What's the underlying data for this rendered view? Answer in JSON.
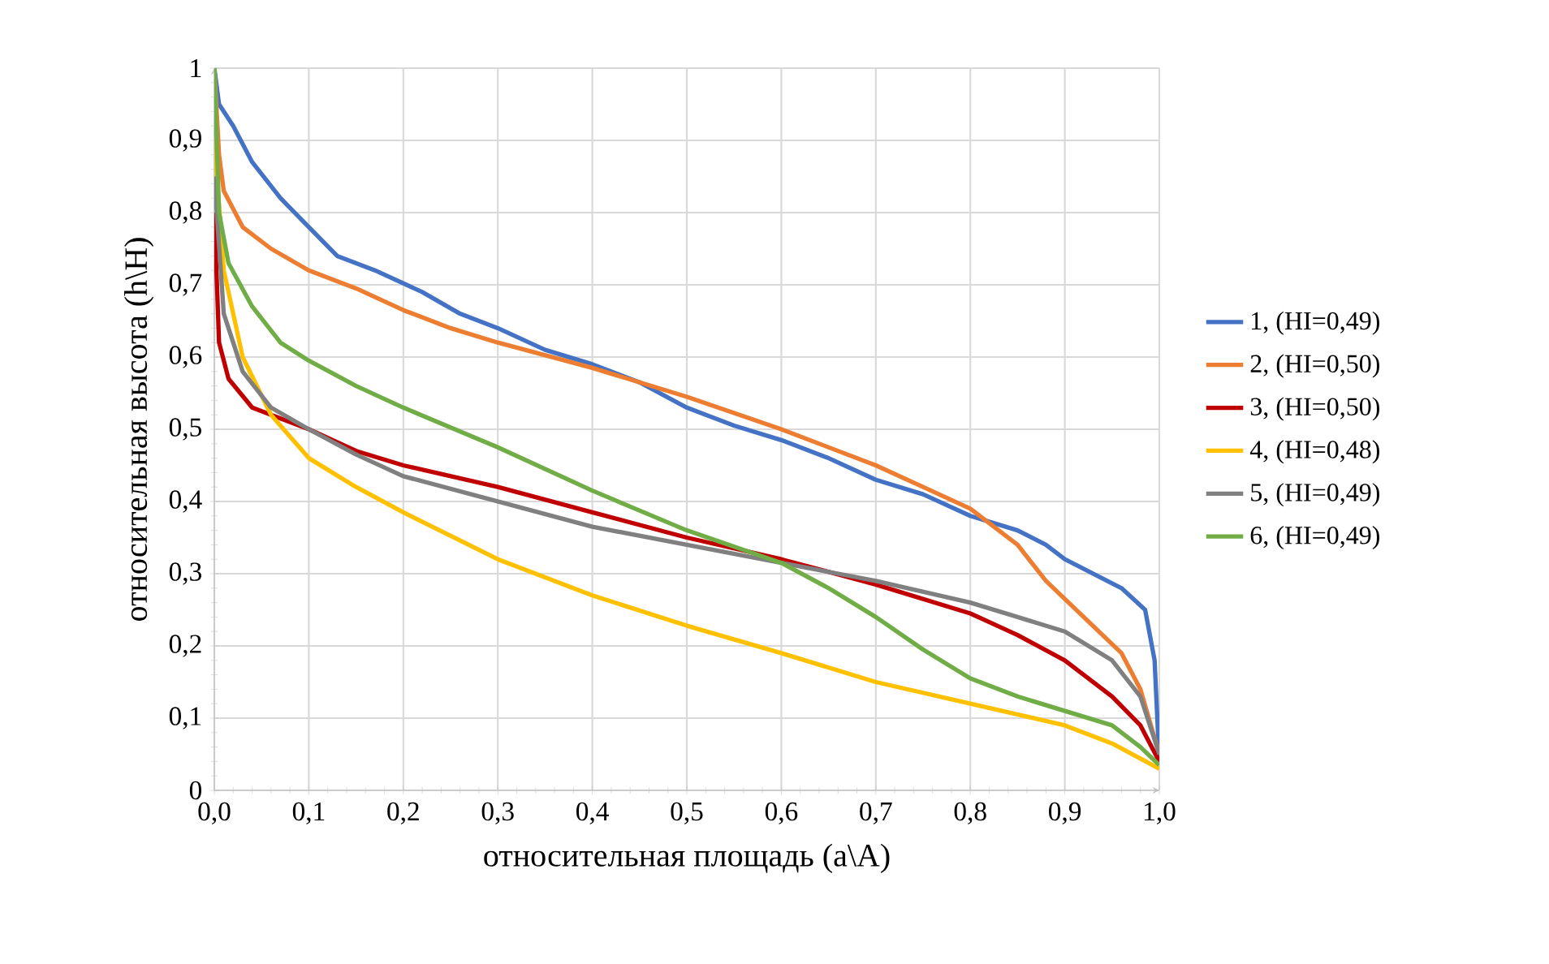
{
  "chart_data": {
    "type": "line",
    "xlabel": "относительная площадь (a\\A)",
    "ylabel": "относительная высота (h\\H)",
    "xlim": [
      0,
      1
    ],
    "ylim": [
      0,
      1
    ],
    "xticks": [
      {
        "value": 0,
        "label": "0,0"
      },
      {
        "value": 0.1,
        "label": "0,1"
      },
      {
        "value": 0.2,
        "label": "0,2"
      },
      {
        "value": 0.3,
        "label": "0,3"
      },
      {
        "value": 0.4,
        "label": "0,4"
      },
      {
        "value": 0.5,
        "label": "0,5"
      },
      {
        "value": 0.6,
        "label": "0,6"
      },
      {
        "value": 0.7,
        "label": "0,7"
      },
      {
        "value": 0.8,
        "label": "0,8"
      },
      {
        "value": 0.9,
        "label": "0,9"
      },
      {
        "value": 1,
        "label": "1,0"
      }
    ],
    "yticks": [
      0,
      {
        "value": 0.1,
        "label": "0,1"
      },
      {
        "value": 0.2,
        "label": "0,2"
      },
      {
        "value": 0.3,
        "label": "0,3"
      },
      {
        "value": 0.4,
        "label": "0,4"
      },
      {
        "value": 0.5,
        "label": "0,5"
      },
      {
        "value": 0.6,
        "label": "0,6"
      },
      {
        "value": 0.7,
        "label": "0,7"
      },
      {
        "value": 0.8,
        "label": "0,8"
      },
      {
        "value": 0.9,
        "label": "0,9"
      },
      1
    ],
    "grid": true,
    "legend": "right",
    "marker": "none",
    "line_style": "solid",
    "series": [
      {
        "name": "1, (HI=0,49)",
        "color": "#4472c4",
        "x": [
          0,
          0.005,
          0.02,
          0.04,
          0.07,
          0.1,
          0.13,
          0.17,
          0.22,
          0.26,
          0.3,
          0.35,
          0.4,
          0.45,
          0.5,
          0.55,
          0.6,
          0.65,
          0.7,
          0.75,
          0.8,
          0.85,
          0.88,
          0.9,
          0.93,
          0.96,
          0.985,
          0.995,
          1
        ],
        "values": [
          1,
          0.95,
          0.92,
          0.87,
          0.82,
          0.78,
          0.74,
          0.72,
          0.69,
          0.66,
          0.64,
          0.61,
          0.59,
          0.565,
          0.53,
          0.505,
          0.485,
          0.46,
          0.43,
          0.41,
          0.38,
          0.36,
          0.34,
          0.32,
          0.3,
          0.28,
          0.25,
          0.18,
          0.04
        ]
      },
      {
        "name": "2, (HI=0,50)",
        "color": "#ed7d31",
        "x": [
          0,
          0.005,
          0.01,
          0.03,
          0.06,
          0.1,
          0.15,
          0.2,
          0.25,
          0.3,
          0.4,
          0.5,
          0.6,
          0.7,
          0.75,
          0.8,
          0.85,
          0.88,
          0.92,
          0.96,
          0.98,
          1
        ],
        "values": [
          1,
          0.88,
          0.83,
          0.78,
          0.75,
          0.72,
          0.695,
          0.665,
          0.64,
          0.62,
          0.585,
          0.545,
          0.5,
          0.45,
          0.42,
          0.39,
          0.34,
          0.29,
          0.24,
          0.19,
          0.14,
          0.05
        ]
      },
      {
        "name": "3, (HI=0,50)",
        "color": "#c00000",
        "x": [
          0,
          0.005,
          0.015,
          0.04,
          0.1,
          0.15,
          0.2,
          0.3,
          0.4,
          0.5,
          0.6,
          0.7,
          0.8,
          0.85,
          0.9,
          0.95,
          0.98,
          1
        ],
        "values": [
          0.8,
          0.62,
          0.57,
          0.53,
          0.5,
          0.47,
          0.45,
          0.42,
          0.385,
          0.35,
          0.32,
          0.285,
          0.245,
          0.215,
          0.18,
          0.13,
          0.09,
          0.04
        ]
      },
      {
        "name": "4, (HI=0,48)",
        "color": "#ffc000",
        "x": [
          0,
          0.01,
          0.03,
          0.06,
          0.1,
          0.15,
          0.2,
          0.3,
          0.4,
          0.5,
          0.6,
          0.7,
          0.8,
          0.9,
          0.95,
          1
        ],
        "values": [
          0.9,
          0.72,
          0.6,
          0.52,
          0.46,
          0.42,
          0.385,
          0.32,
          0.27,
          0.228,
          0.19,
          0.15,
          0.12,
          0.09,
          0.065,
          0.03
        ]
      },
      {
        "name": "5, (HI=0,49)",
        "color": "#808080",
        "x": [
          0,
          0.01,
          0.03,
          0.06,
          0.1,
          0.15,
          0.2,
          0.3,
          0.4,
          0.5,
          0.6,
          0.7,
          0.8,
          0.9,
          0.95,
          0.98,
          1
        ],
        "values": [
          0.85,
          0.66,
          0.58,
          0.53,
          0.5,
          0.465,
          0.435,
          0.4,
          0.365,
          0.34,
          0.315,
          0.29,
          0.26,
          0.22,
          0.18,
          0.13,
          0.05
        ]
      },
      {
        "name": "6, (HI=0,49)",
        "color": "#70ad47",
        "x": [
          0,
          0.005,
          0.015,
          0.04,
          0.07,
          0.1,
          0.15,
          0.2,
          0.3,
          0.4,
          0.5,
          0.6,
          0.65,
          0.7,
          0.75,
          0.8,
          0.85,
          0.9,
          0.95,
          0.98,
          1
        ],
        "values": [
          1,
          0.8,
          0.73,
          0.67,
          0.62,
          0.595,
          0.56,
          0.53,
          0.475,
          0.415,
          0.36,
          0.315,
          0.28,
          0.24,
          0.195,
          0.155,
          0.13,
          0.11,
          0.09,
          0.06,
          0.035
        ]
      }
    ]
  }
}
